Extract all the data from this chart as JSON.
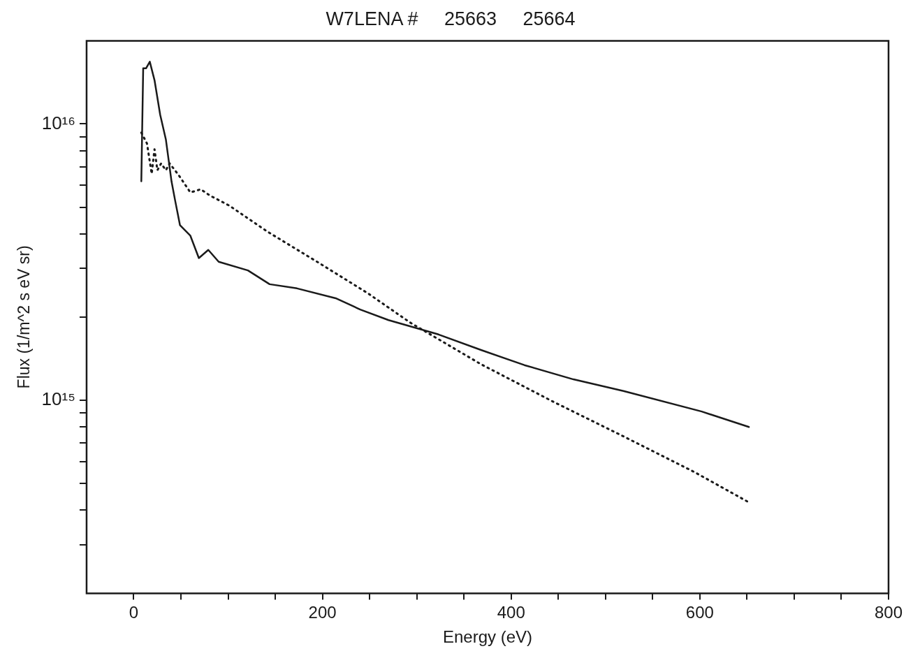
{
  "chart_data": {
    "type": "line",
    "title": "W7LENA #     25663     25664",
    "xlabel": "Energy (eV)",
    "ylabel": "Flux (1/m^2 s eV sr)",
    "xlim": [
      -50,
      800
    ],
    "xticks": [
      0,
      {
        "value": 50,
        "label": null
      },
      {
        "value": 100,
        "label": null
      },
      {
        "value": 150,
        "label": null
      },
      200,
      {
        "value": 250,
        "label": null
      },
      {
        "value": 300,
        "label": null
      },
      {
        "value": 350,
        "label": null
      },
      400,
      {
        "value": 450,
        "label": null
      },
      {
        "value": 500,
        "label": null
      },
      {
        "value": 550,
        "label": null
      },
      600,
      {
        "value": 650,
        "label": null
      },
      {
        "value": 700,
        "label": null
      },
      {
        "value": 750,
        "label": null
      },
      800
    ],
    "ylim": [
      200000000000000.0,
      2e+16
    ],
    "log": "y",
    "yticks": [
      {
        "value": 300000000000000.0,
        "label": null
      },
      {
        "value": 400000000000000.0,
        "label": null
      },
      {
        "value": 500000000000000.0,
        "label": null
      },
      {
        "value": 600000000000000.0,
        "label": null
      },
      {
        "value": 700000000000000.0,
        "label": null
      },
      {
        "value": 800000000000000.0,
        "label": null
      },
      {
        "value": 900000000000000.0,
        "label": null
      },
      {
        "value": 1000000000000000.0,
        "label": "10¹⁵"
      },
      {
        "value": 2000000000000000.0,
        "label": null
      },
      {
        "value": 3000000000000000.0,
        "label": null
      },
      {
        "value": 4000000000000000.0,
        "label": null
      },
      {
        "value": 5000000000000000.0,
        "label": null
      },
      {
        "value": 6000000000000000.0,
        "label": null
      },
      {
        "value": 7000000000000000.0,
        "label": null
      },
      {
        "value": 8000000000000000.0,
        "label": null
      },
      {
        "value": 9000000000000000.0,
        "label": null
      },
      {
        "value": 1e+16,
        "label": "10¹⁶"
      }
    ],
    "grid": false,
    "legend": false,
    "marker": "none",
    "series": [
      {
        "color": "#1a1a1a",
        "line_style": "solid",
        "x": [
          8,
          10,
          13,
          17,
          22,
          28,
          34,
          40,
          44,
          49,
          60,
          69,
          79,
          90,
          121,
          144,
          173,
          214,
          240,
          270,
          323,
          368,
          414,
          466,
          519,
          602,
          652
        ],
        "values": [
          6200000000000000.0,
          1.59e+16,
          1.59e+16,
          1.68e+16,
          1.44e+16,
          1.08e+16,
          8800000000000000.0,
          6200000000000000.0,
          5250000000000000.0,
          4300000000000000.0,
          3940000000000000.0,
          3270000000000000.0,
          3500000000000000.0,
          3170000000000000.0,
          2950000000000000.0,
          2630000000000000.0,
          2540000000000000.0,
          2340000000000000.0,
          2130000000000000.0,
          1950000000000000.0,
          1730000000000000.0,
          1520000000000000.0,
          1340000000000000.0,
          1190000000000000.0,
          1080000000000000.0,
          910000000000000.0,
          800000000000000.0
        ]
      },
      {
        "color": "#1a1a1a",
        "line_style": "dotted",
        "x": [
          8,
          14,
          19,
          22,
          25,
          29,
          34,
          38,
          48,
          60,
          71,
          81,
          101,
          142,
          195,
          248,
          293,
          368,
          444,
          519,
          594,
          652
        ],
        "values": [
          9300000000000000.0,
          8500000000000000.0,
          6600000000000000.0,
          8100000000000000.0,
          6800000000000000.0,
          7200000000000000.0,
          6800000000000000.0,
          7200000000000000.0,
          6500000000000000.0,
          5650000000000000.0,
          5800000000000000.0,
          5500000000000000.0,
          5070000000000000.0,
          4070000000000000.0,
          3160000000000000.0,
          2440000000000000.0,
          1910000000000000.0,
          1350000000000000.0,
          990000000000000.0,
          740000000000000.0,
          550000000000000.0,
          427000000000000.0
        ]
      }
    ]
  }
}
